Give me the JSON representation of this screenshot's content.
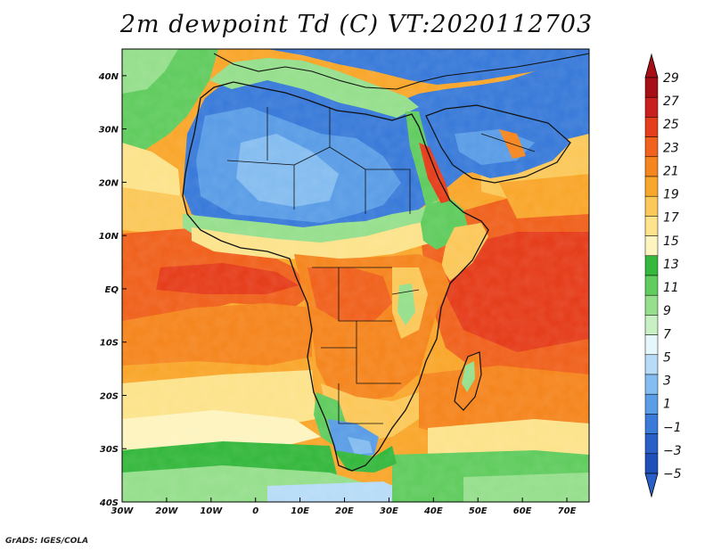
{
  "map": {
    "title": "2m dewpoint Td (C) VT:2020112703",
    "variable": "2m dewpoint",
    "units": "C",
    "valid_time": "2020112703",
    "region": "Africa",
    "lon_range": [
      -30,
      75
    ],
    "lat_range": [
      -40,
      45
    ],
    "x_ticks": [
      {
        "lon": -30,
        "label": "30W"
      },
      {
        "lon": -20,
        "label": "20W"
      },
      {
        "lon": -10,
        "label": "10W"
      },
      {
        "lon": 0,
        "label": "0"
      },
      {
        "lon": 10,
        "label": "10E"
      },
      {
        "lon": 20,
        "label": "20E"
      },
      {
        "lon": 30,
        "label": "30E"
      },
      {
        "lon": 40,
        "label": "40E"
      },
      {
        "lon": 50,
        "label": "50E"
      },
      {
        "lon": 60,
        "label": "60E"
      },
      {
        "lon": 70,
        "label": "70E"
      }
    ],
    "y_ticks": [
      {
        "lat": 40,
        "label": "40N"
      },
      {
        "lat": 30,
        "label": "30N"
      },
      {
        "lat": 20,
        "label": "20N"
      },
      {
        "lat": 10,
        "label": "10N"
      },
      {
        "lat": 0,
        "label": "EQ"
      },
      {
        "lat": -10,
        "label": "10S"
      },
      {
        "lat": -20,
        "label": "20S"
      },
      {
        "lat": -30,
        "label": "30S"
      },
      {
        "lat": -40,
        "label": "40S"
      }
    ]
  },
  "colorbar": {
    "labels": [
      "29",
      "27",
      "25",
      "23",
      "21",
      "19",
      "17",
      "15",
      "13",
      "11",
      "9",
      "7",
      "5",
      "3",
      "1",
      "−1",
      "−3",
      "−5"
    ],
    "colors": [
      "#a50f15",
      "#c8201e",
      "#e53e1c",
      "#f0621e",
      "#f5861f",
      "#f9a72c",
      "#fbc85a",
      "#fce38c",
      "#fdf4c0",
      "#36b83e",
      "#61cc5f",
      "#96df8d",
      "#c9f0c4",
      "#e6f7fb",
      "#b8dcf7",
      "#85bdf0",
      "#5b9de6",
      "#3a7bd9",
      "#2a5fc7",
      "#1f4fb8"
    ],
    "top_triangle_color": "#a50f15",
    "bottom_triangle_color": "#2a5fc7"
  },
  "credit": "GrADS: IGES/COLA"
}
